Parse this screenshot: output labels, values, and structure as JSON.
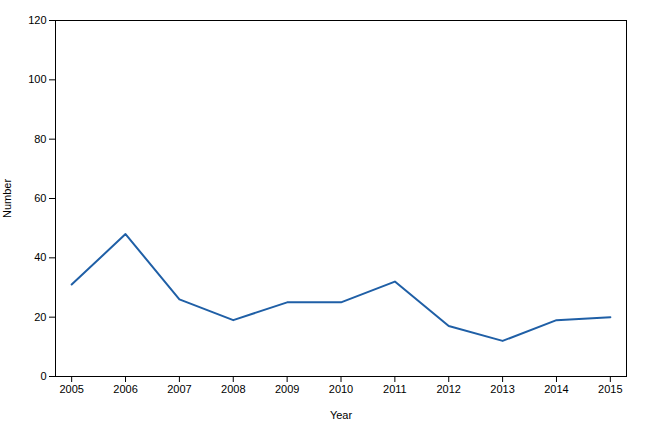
{
  "chart_data": {
    "type": "line",
    "x": [
      2005,
      2006,
      2007,
      2008,
      2009,
      2010,
      2011,
      2012,
      2013,
      2014,
      2015
    ],
    "values": [
      31,
      48,
      26,
      19,
      25,
      25,
      32,
      17,
      12,
      19,
      20
    ],
    "color": "#1f5fa6",
    "xlabel": "Year",
    "ylabel": "Number",
    "xlim": [
      2004.7,
      2015.3
    ],
    "xticks": [
      2005,
      2006,
      2007,
      2008,
      2009,
      2010,
      2011,
      2012,
      2013,
      2014,
      2015
    ],
    "ylim": [
      0,
      120
    ],
    "yticks": [
      0,
      20,
      40,
      60,
      80,
      100,
      120
    ],
    "grid": false
  }
}
